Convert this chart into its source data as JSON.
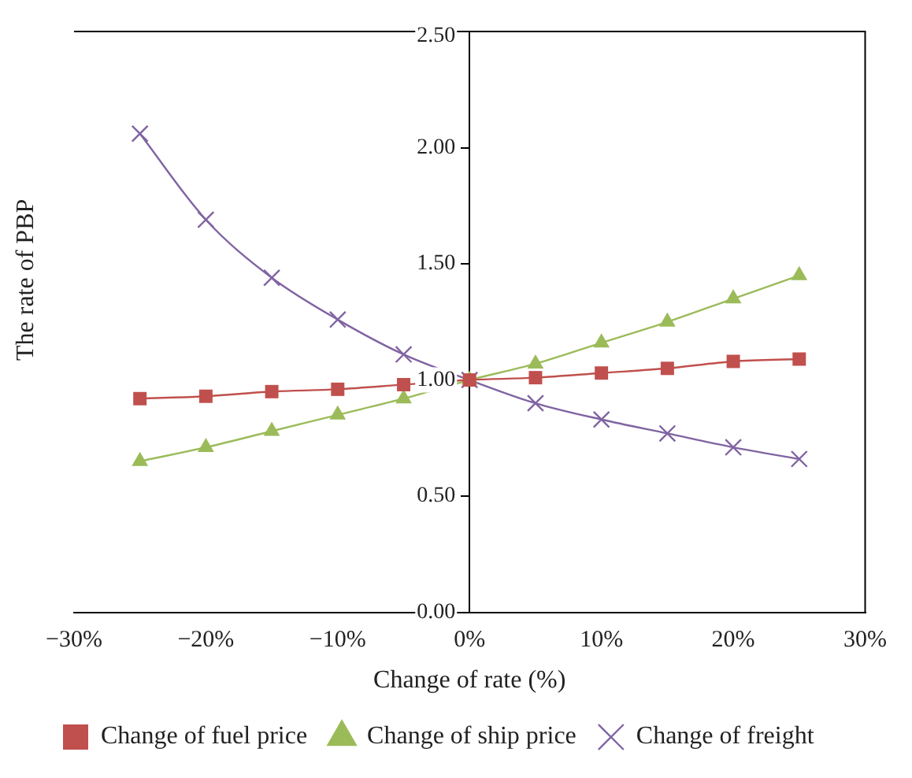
{
  "chart_data": {
    "type": "line",
    "xlabel": "Change of rate (%)",
    "ylabel": "The rate of PBP",
    "x": [
      -25,
      -20,
      -15,
      -10,
      -5,
      0,
      5,
      10,
      15,
      20,
      25
    ],
    "series": [
      {
        "name": "Change of fuel price",
        "color": "#c0504d",
        "marker": "square",
        "values": [
          0.92,
          0.93,
          0.95,
          0.96,
          0.98,
          1.0,
          1.01,
          1.03,
          1.05,
          1.08,
          1.09
        ]
      },
      {
        "name": "Change of ship price",
        "color": "#9bbb59",
        "marker": "triangle",
        "values": [
          0.65,
          0.71,
          0.78,
          0.85,
          0.92,
          1.0,
          1.07,
          1.16,
          1.25,
          1.35,
          1.45
        ]
      },
      {
        "name": "Change of freight",
        "color": "#8064a2",
        "marker": "cross",
        "values": [
          2.06,
          1.69,
          1.44,
          1.26,
          1.11,
          1.0,
          0.9,
          0.83,
          0.77,
          0.71,
          0.66
        ]
      }
    ],
    "xlim": [
      -30,
      30
    ],
    "xticks": [
      {
        "value": -30,
        "label": "−30%"
      },
      {
        "value": -20,
        "label": "−20%"
      },
      {
        "value": -10,
        "label": "−10%"
      },
      {
        "value": 0,
        "label": "0%"
      },
      {
        "value": 10,
        "label": "10%"
      },
      {
        "value": 20,
        "label": "20%"
      },
      {
        "value": 30,
        "label": "30%"
      }
    ],
    "ylim": [
      0,
      2.5
    ],
    "yticks": [
      {
        "value": 0,
        "label": "0.00"
      },
      {
        "value": 0.5,
        "label": "0.50"
      },
      {
        "value": 1,
        "label": "1.00"
      },
      {
        "value": 1.5,
        "label": "1.50"
      },
      {
        "value": 2,
        "label": "2.00"
      },
      {
        "value": 2.5,
        "label": "2.50"
      }
    ],
    "grid": false,
    "legend": "bottom"
  }
}
